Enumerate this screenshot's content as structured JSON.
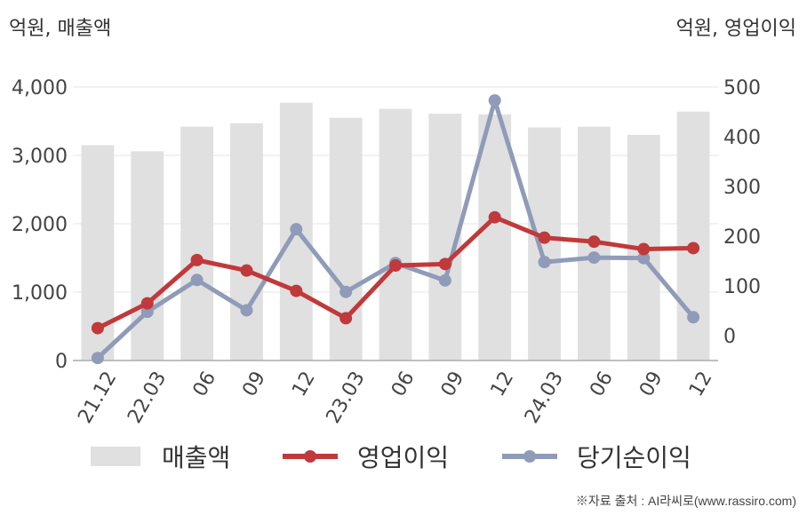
{
  "units": {
    "left": "억원, 매출액",
    "right": "억원, 영업이익"
  },
  "source": "※자료 출처 : AI라씨로(www.rassiro.com)",
  "legend": [
    "매출액",
    "영업이익",
    "당기순이익"
  ],
  "colors": {
    "bar": "#e0e0e0",
    "operating": "#c0393b",
    "net": "#8f9bb8",
    "axis": "#aaaaaa",
    "grid": "#e6e6e6",
    "text": "#444444"
  },
  "chart_data": {
    "type": "bar+line",
    "categories": [
      "21.12",
      "22.03",
      "06",
      "09",
      "12",
      "23.03",
      "06",
      "09",
      "12",
      "24.03",
      "06",
      "09",
      "12"
    ],
    "y_left": {
      "ticks": [
        "0",
        "1,000",
        "2,000",
        "3,000",
        "4,000"
      ],
      "ylim": [
        0,
        4000
      ]
    },
    "y_right": {
      "ticks": [
        "0",
        "100",
        "200",
        "300",
        "400",
        "500"
      ],
      "ylim": [
        -50,
        500
      ]
    },
    "series": [
      {
        "name": "매출액",
        "type": "bar",
        "axis": "left",
        "values": [
          3150,
          3060,
          3420,
          3470,
          3770,
          3550,
          3680,
          3610,
          3600,
          3410,
          3420,
          3300,
          3640
        ]
      },
      {
        "name": "영업이익",
        "type": "line",
        "axis": "right",
        "values": [
          15,
          65,
          152,
          131,
          90,
          35,
          141,
          144,
          238,
          197,
          189,
          174,
          176
        ]
      },
      {
        "name": "당기순이익",
        "type": "line",
        "axis": "right",
        "values": [
          -45,
          48,
          112,
          51,
          214,
          88,
          146,
          111,
          473,
          148,
          157,
          156,
          37
        ]
      }
    ],
    "grid": true
  }
}
